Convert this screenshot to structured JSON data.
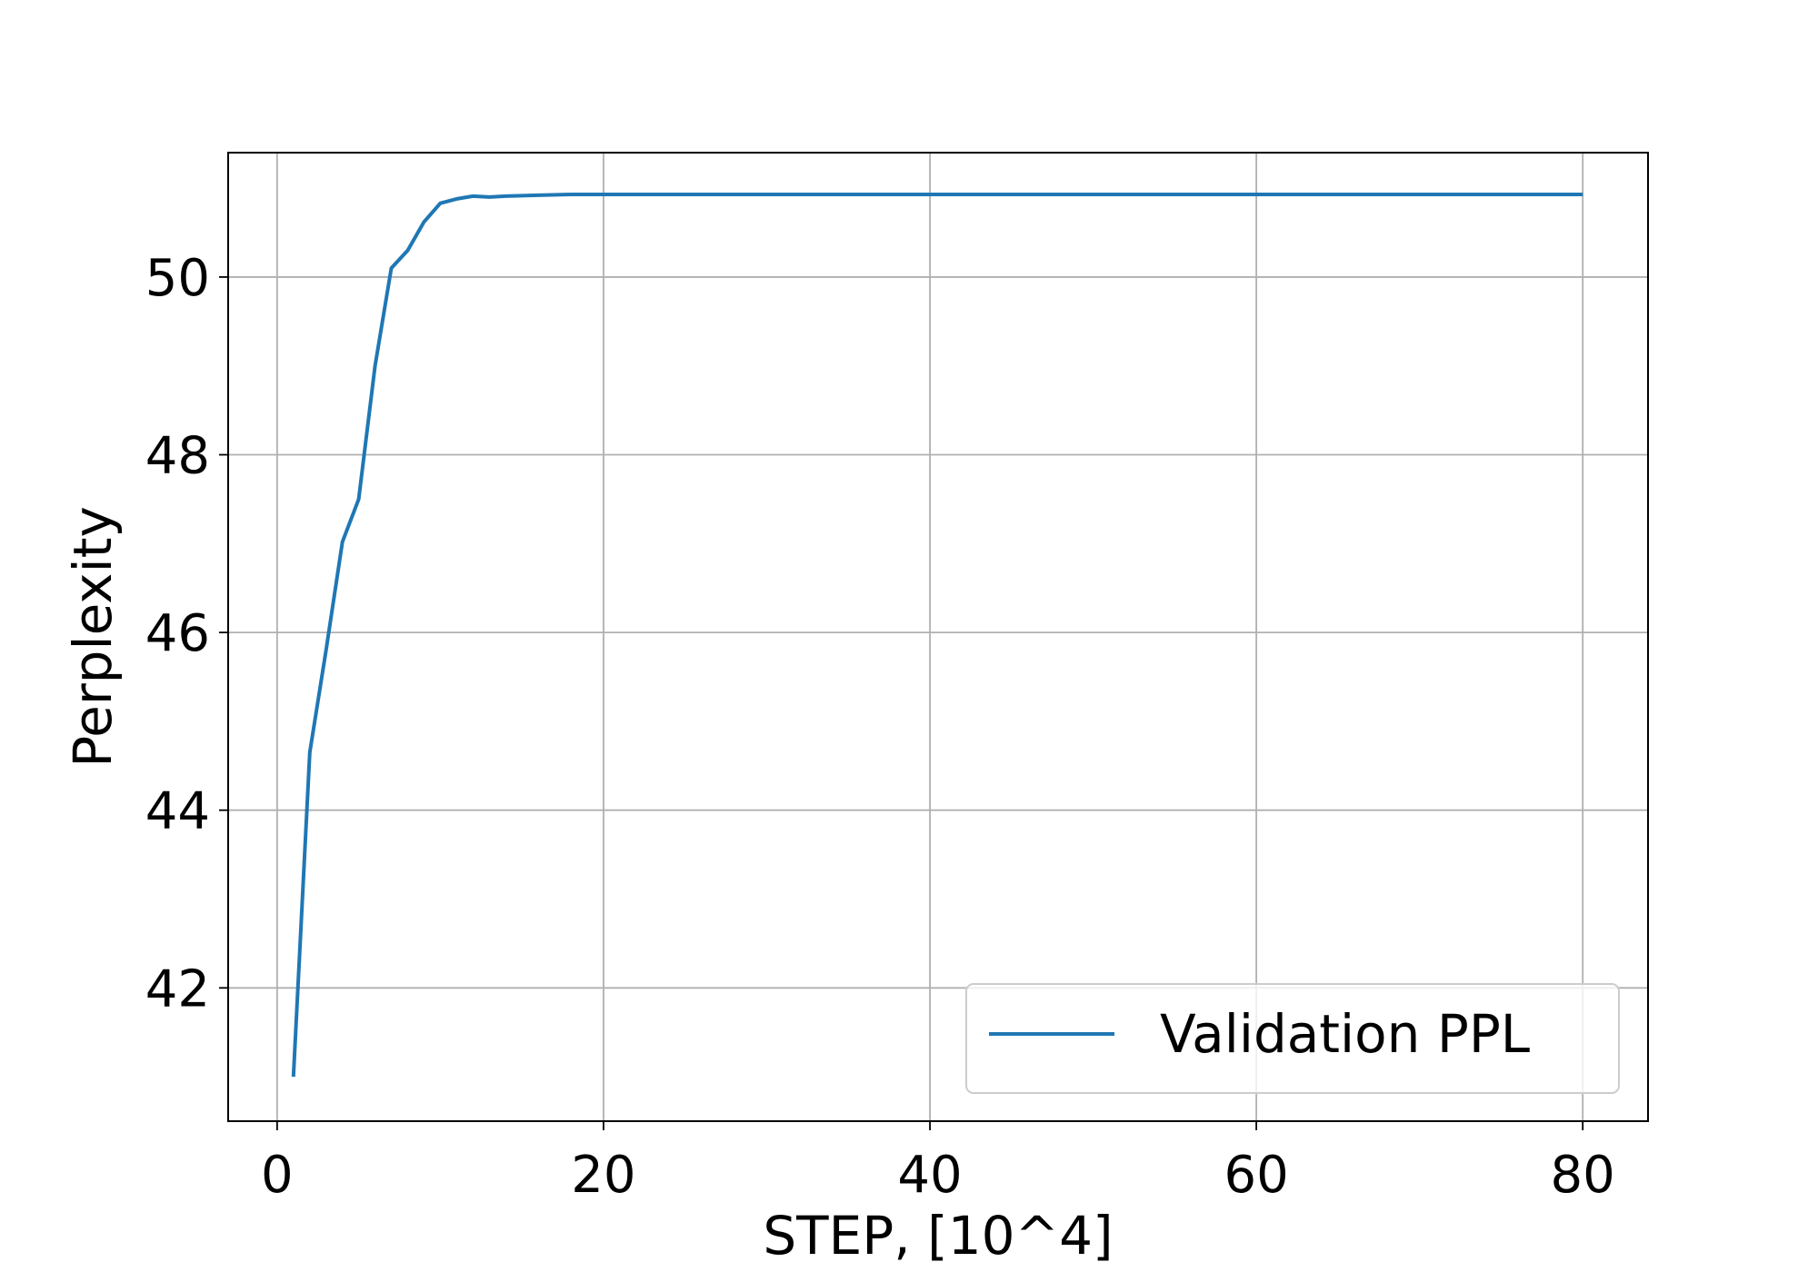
{
  "chart_data": {
    "type": "line",
    "title": "",
    "xlabel": "STEP, [10^4]",
    "ylabel": "Perplexity",
    "xlim": [
      -3,
      84
    ],
    "ylim": [
      40.5,
      51.4
    ],
    "xticks": [
      0,
      20,
      40,
      60,
      80
    ],
    "yticks": [
      42,
      44,
      46,
      48,
      50
    ],
    "grid": true,
    "legend": {
      "placement": "lower-right"
    },
    "series": [
      {
        "name": "Validation PPL",
        "color": "#1f77b4",
        "x": [
          1,
          2,
          3,
          4,
          5,
          6,
          7,
          8,
          9,
          10,
          11,
          12,
          13,
          14,
          16,
          18,
          20,
          30,
          40,
          50,
          60,
          70,
          80
        ],
        "y": [
          41.0,
          44.65,
          45.8,
          47.02,
          47.5,
          49.0,
          50.1,
          50.3,
          50.62,
          50.83,
          50.88,
          50.91,
          50.9,
          50.91,
          50.92,
          50.93,
          50.93,
          50.93,
          50.93,
          50.93,
          50.93,
          50.93,
          50.93
        ]
      }
    ]
  }
}
